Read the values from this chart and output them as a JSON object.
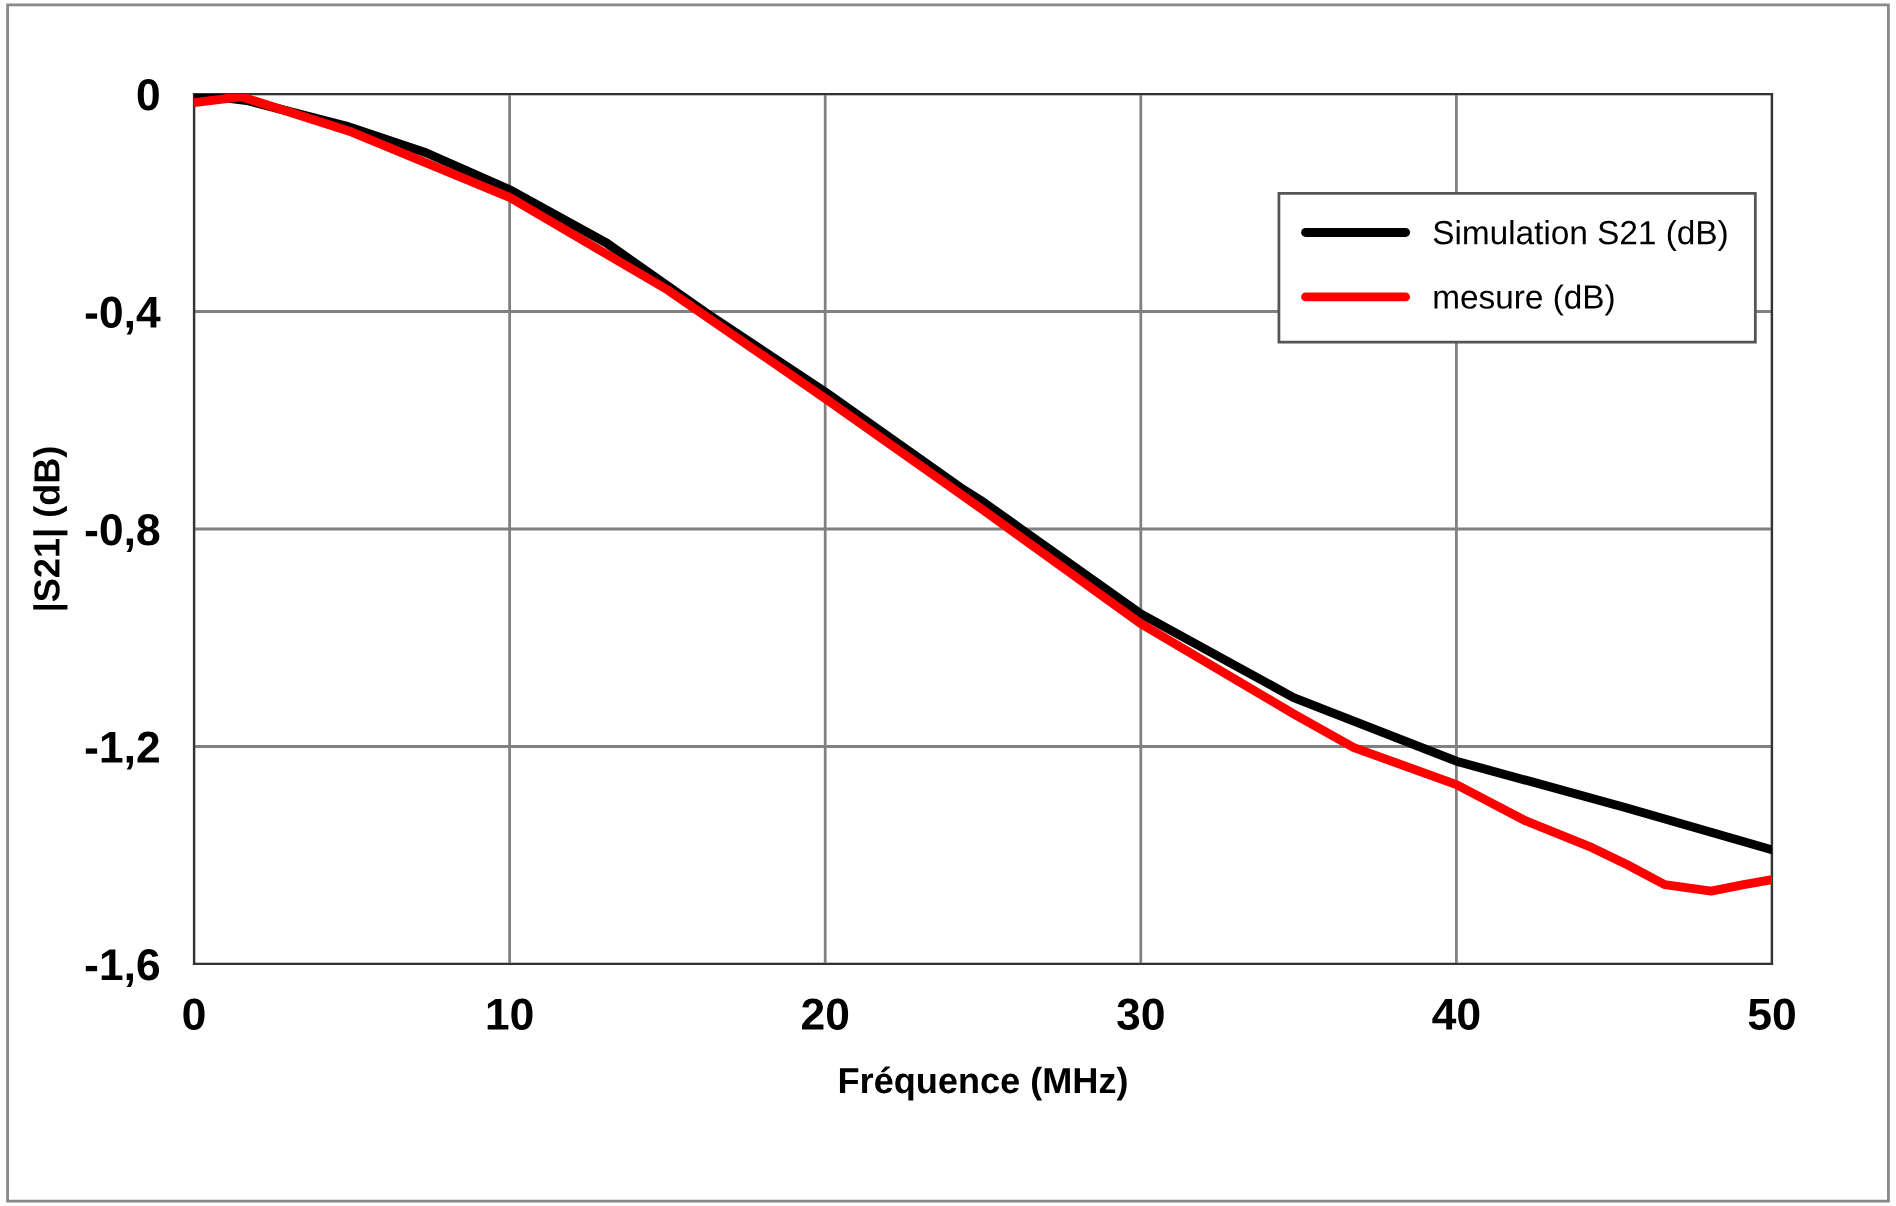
{
  "chart_data": {
    "type": "line",
    "xlabel": "Fréquence (MHz)",
    "ylabel": "|S21| (dB)",
    "xlim": [
      0,
      50
    ],
    "xticks": [
      0,
      10,
      20,
      30,
      40,
      50
    ],
    "ylim": [
      -1.6,
      0
    ],
    "yticks": [
      {
        "value": -1.6,
        "label": "-1,6"
      },
      {
        "value": -1.2,
        "label": "-1,2"
      },
      {
        "value": -0.8,
        "label": "-0,8"
      },
      {
        "value": -0.4,
        "label": "-0,4"
      },
      0
    ],
    "grid": true,
    "legend": "top right",
    "marker": "none",
    "line_style": "solid",
    "series": [
      {
        "name": "Simulation S21 (dB)",
        "color": "#000000",
        "x": [
          0,
          1.67,
          4.82,
          7.35,
          10,
          13.07,
          16.24,
          20,
          24.27,
          24.92,
          30,
          34.84,
          40,
          45.4,
          50
        ],
        "values": [
          0,
          -0.012,
          -0.059,
          -0.108,
          -0.176,
          -0.274,
          -0.403,
          -0.548,
          -0.723,
          -0.747,
          -0.956,
          -1.11,
          -1.227,
          -1.313,
          -1.39
        ]
      },
      {
        "name": "mesure (dB)",
        "color": "#ff0000",
        "x": [
          0,
          1.5,
          5,
          10,
          15,
          20,
          24.27,
          25,
          30,
          34.84,
          36.75,
          40,
          42.2,
          44.3,
          45.4,
          46.6,
          48.07,
          49.1,
          50
        ],
        "values": [
          -0.016,
          -0.005,
          -0.07,
          -0.19,
          -0.36,
          -0.56,
          -0.735,
          -0.765,
          -0.974,
          -1.14,
          -1.202,
          -1.27,
          -1.337,
          -1.386,
          -1.417,
          -1.454,
          -1.466,
          -1.454,
          -1.445
        ]
      }
    ]
  }
}
